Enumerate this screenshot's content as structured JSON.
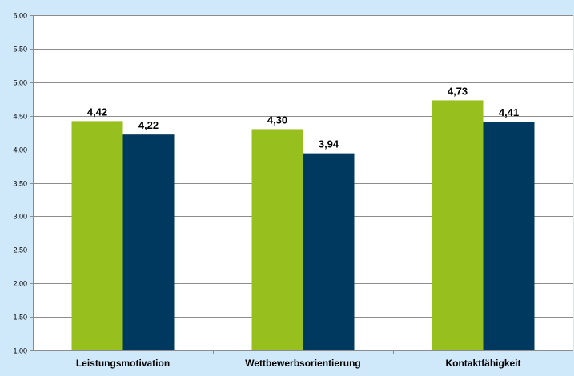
{
  "chart_data": {
    "type": "bar",
    "categories": [
      "Leistungsmotivation",
      "Wettbewerbsorientierung",
      "Kontaktfähigkeit"
    ],
    "series": [
      {
        "values": [
          4.42,
          4.3,
          4.73
        ],
        "color": "#97bf1e"
      },
      {
        "values": [
          4.22,
          3.94,
          4.41
        ],
        "color": "#00395f"
      }
    ],
    "data_labels": [
      [
        "4,42",
        "4,30",
        "4,73"
      ],
      [
        "4,22",
        "3,94",
        "4,41"
      ]
    ],
    "ylim": [
      1.0,
      6.0
    ],
    "yticks": [
      1.0,
      1.5,
      2.0,
      2.5,
      3.0,
      3.5,
      4.0,
      4.5,
      5.0,
      5.5,
      6.0
    ],
    "ytick_labels": [
      "1,00",
      "1,50",
      "2,00",
      "2,50",
      "3,00",
      "3,50",
      "4,00",
      "4,50",
      "5,00",
      "5,50",
      "6,00"
    ],
    "grid": true,
    "title": "",
    "xlabel": "",
    "ylabel": ""
  },
  "colors": {
    "background": "#cfe9fb",
    "plot_background": "#ffffff",
    "gridline": "#8c8c8c"
  }
}
